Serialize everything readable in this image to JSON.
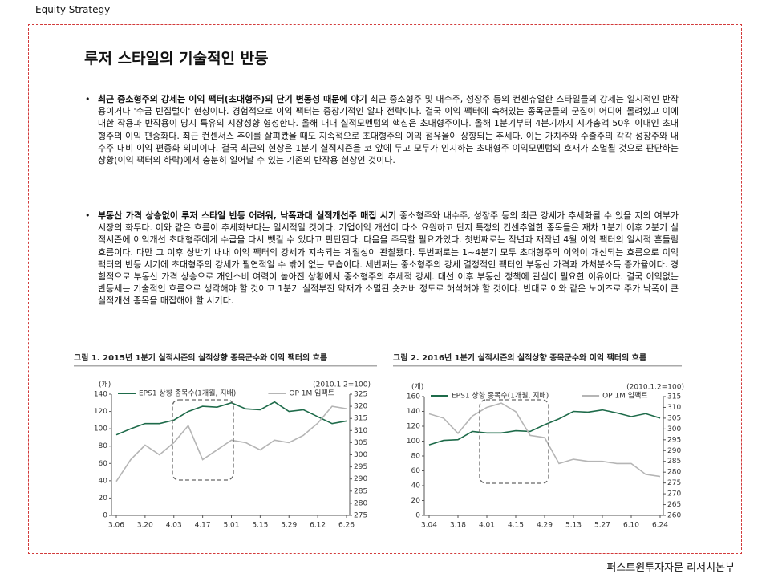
{
  "header": "Equity Strategy",
  "title": "루저 스타일의 기술적인 반등",
  "bullets": [
    {
      "lead": "최근 중소형주의 강세는 이익 팩터(초대형주)의 단기 변동성 때문에 야기",
      "text": "최근 중소형주 및 내수주, 성장주 등의 컨센츄얼한 스타일들의 강세는 일시적인 반작용이거나 '수급 빈집털이' 현상이다. 경험적으로 이익 팩터는 중장기적인 알파 전략이다. 결국 이익 팩터에 속해있는 종목군들의 군집이 어디에 몰려있고 이에 대한 작용과 반작용이 당시 특유의 시장성향 형성한다. 올해 내내 실적모멘텀의 핵심은 초대형주이다. 올해 1분기부터 4분기까지 시가총액 50위 이내인 초대형주의 이익 편중화다. 최근 컨센서스 추이를 살펴봤을 때도 지속적으로 초대형주의 이익 점유율이 상향되는 추세다. 이는 가치주와 수출주의 각각 성장주와 내수주 대비 이익 편중화 의미이다. 결국 최근의 현상은 1분기 실적시즌을 코 앞에 두고 모두가 인지하는 초대형주 이익모멘텀의 호재가 소멸될 것으로 판단하는 상황(이익 팩터의 하락)에서 충분히 일어날 수 있는 기존의 반작용 현상인 것이다."
    },
    {
      "lead": "부동산 가격 상승없이 루저 스타일 반등 어려워, 낙폭과대 실적개선주 매집 시기",
      "text": "중소형주와 내수주, 성장주 등의 최근 강세가 추세화될 수 있을 지의 여부가 시장의 화두다. 이와 같은 흐름이 추세화보다는 일시적일 것이다. 기업이익 개선이 다소 요원하고 단지 특정의 컨센추얼한 종목들은 재차 1분기 이후 2분기 실적시즌에 이익개선 초대형주에게 수급을 다시 뺏길 수 있다고 판단된다. 다음을 주목할 필요가있다. 첫번째로는 작년과 재작년 4월 이익 팩터의 일시적 흔들림 흐름이다. 다만 그 이후 상반기 내내 이익 팩터의 강세가 지속되는 계절성이 관찰됐다. 두번째로는 1~4분기 모두 초대형주의 이익이 개선되는 흐름으로 이익 팩터의 반등 시기에 초대형주의 강세가 필연적일 수 밖에 없는 모습이다. 세번째는 중소형주의 강세 결정적인 팩터인 부동산 가격과 가처분소득 증가율이다. 경험적으로 부동산 가격 상승으로 개인소비 여력이 높아진 상황에서 중소형주의 추세적 강세. 대선 이후 부동산 정책에 관심이 필요한 이유이다. 결국 이익없는 반등세는 기술적인 흐름으로 생각해야 할 것이고 1분기 실적부진 악재가 소멸된 숏커버 정도로 해석해야 할 것이다. 반대로 이와 같은 노이즈로 주가 낙폭이 큰 실적개선 종목을 매집해야 할 시기다."
    }
  ],
  "chart_data": [
    {
      "type": "line",
      "title": "그림 1. 2015년 1분기 실적시즌의 실적상향 종목군수와 이익 팩터의 흐름",
      "y_label": "(개)",
      "y2_label": "(2010.1.2=100)",
      "categories": [
        "3.06",
        null,
        "3.20",
        null,
        "4.03",
        null,
        "4.17",
        null,
        "5.01",
        null,
        "5.15",
        null,
        "5.29",
        null,
        "6.12",
        null,
        "6.26"
      ],
      "series": [
        {
          "name": "EPS1 상향 종목수(1개월, 지배)",
          "color": "#1e6b4a",
          "values": [
            93,
            100,
            106,
            106,
            110,
            120,
            126,
            125,
            130,
            123,
            122,
            131,
            120,
            122,
            114,
            106,
            109
          ]
        },
        {
          "name": "OP 1M 임팩트",
          "color": "#b5b5b5",
          "axis": "y2",
          "values": [
            289,
            298,
            304,
            300,
            305,
            312,
            298,
            302,
            306,
            305,
            302,
            306,
            305,
            308,
            313,
            320,
            319
          ]
        }
      ],
      "ylim": [
        0,
        140
      ],
      "yticks": [
        0,
        20,
        40,
        60,
        80,
        100,
        120,
        140
      ],
      "y2lim": [
        275,
        325
      ],
      "y2ticks": [
        275,
        280,
        285,
        290,
        295,
        300,
        305,
        310,
        315,
        320,
        325
      ]
    },
    {
      "type": "line",
      "title": "그림 2. 2016년 1분기 실적시즌의 실적상향 종목군수와 이익 팩터의 흐름",
      "y_label": "(개)",
      "y2_label": "(2010.1.2=100)",
      "categories": [
        "3.04",
        null,
        "3.18",
        null,
        "4.01",
        null,
        "4.15",
        null,
        "4.29",
        null,
        "5.13",
        null,
        "5.27",
        null,
        "6.10",
        null,
        "6.24"
      ],
      "series": [
        {
          "name": "EPS1 상향 종목수(1개월, 지배)",
          "color": "#1e6b4a",
          "values": [
            95,
            101,
            102,
            113,
            111,
            111,
            114,
            113,
            122,
            130,
            140,
            139,
            142,
            138,
            133,
            137,
            131
          ]
        },
        {
          "name": "OP 1M 임팩트",
          "color": "#b5b5b5",
          "axis": "y2",
          "values": [
            307,
            305,
            298,
            306,
            310,
            312,
            308,
            297,
            296,
            284,
            286,
            285,
            285,
            284,
            284,
            279,
            278
          ]
        }
      ],
      "ylim": [
        0,
        160
      ],
      "yticks": [
        0,
        20,
        40,
        60,
        80,
        100,
        120,
        140,
        160
      ],
      "y2lim": [
        260,
        315
      ],
      "y2ticks": [
        260,
        265,
        270,
        275,
        280,
        285,
        290,
        295,
        300,
        305,
        310,
        315
      ]
    }
  ],
  "footer": "퍼스트원투자자문 리서치본부"
}
